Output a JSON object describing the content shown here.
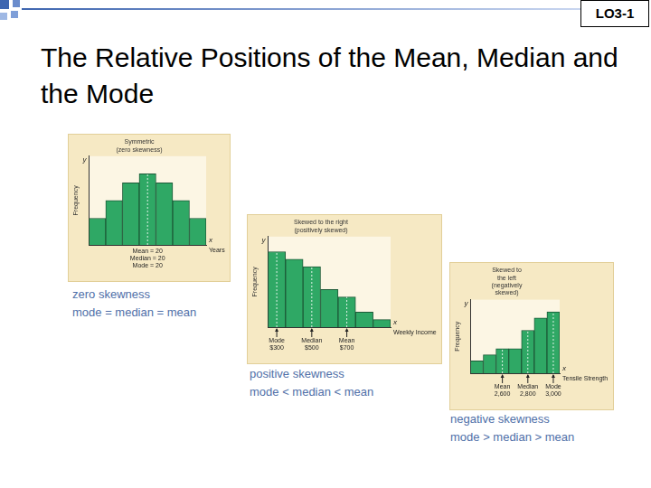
{
  "slide": {
    "tag": "LO3-1",
    "title": "The Relative Positions of the Mean, Median and the Mode"
  },
  "chart_data": [
    {
      "type": "bar",
      "title": [
        "Symmetric",
        "(zero skewness)"
      ],
      "x_label": "Years",
      "y_label": "Frequency",
      "axis_symbols": {
        "x": "x",
        "y": "y"
      },
      "categories": [
        null,
        null,
        null,
        null,
        null,
        null,
        null
      ],
      "values": [
        3,
        5,
        7,
        8,
        7,
        5,
        3
      ],
      "color": "#2fa865",
      "ylim": [
        0,
        10
      ],
      "grid": false,
      "tick_labels": false,
      "markers": [
        {
          "text": [
            "Mean = 20",
            "Median = 20",
            "Mode = 20"
          ],
          "x": 3
        }
      ],
      "caption": [
        "zero skewness",
        "mode = median = mean"
      ]
    },
    {
      "type": "bar",
      "title": [
        "Skewed to the right",
        "(positively skewed)"
      ],
      "x_label": "Weekly Income",
      "y_label": "Frequency",
      "axis_symbols": {
        "x": "x",
        "y": "y"
      },
      "categories": [
        null,
        null,
        null,
        null,
        null,
        null,
        null
      ],
      "values": [
        10,
        9,
        8,
        5,
        4,
        2,
        1
      ],
      "color": "#2fa865",
      "ylim": [
        0,
        12
      ],
      "grid": false,
      "tick_labels": false,
      "markers": [
        {
          "text": [
            "Mode",
            "$300"
          ],
          "x": 0
        },
        {
          "text": [
            "Median",
            "$500"
          ],
          "x": 2
        },
        {
          "text": [
            "Mean",
            "$700"
          ],
          "x": 4
        }
      ],
      "caption": [
        "positive skewness",
        "mode < median < mean"
      ]
    },
    {
      "type": "bar",
      "title": [
        "Skewed to",
        "the left",
        "(negatively",
        "skewed)"
      ],
      "x_label": "Tensile Strength",
      "y_label": "Frequency",
      "axis_symbols": {
        "x": "x",
        "y": "y"
      },
      "categories": [
        null,
        null,
        null,
        null,
        null,
        null,
        null
      ],
      "values": [
        2,
        3,
        4,
        4,
        7,
        9,
        10
      ],
      "color": "#2fa865",
      "ylim": [
        0,
        12
      ],
      "grid": false,
      "tick_labels": false,
      "markers": [
        {
          "text": [
            "Mean",
            "2,600"
          ],
          "x": 2
        },
        {
          "text": [
            "Median",
            "2,800"
          ],
          "x": 4
        },
        {
          "text": [
            "Mode",
            "3,000"
          ],
          "x": 6
        }
      ],
      "caption": [
        "negative skewness",
        "mode > median > mean"
      ]
    }
  ]
}
